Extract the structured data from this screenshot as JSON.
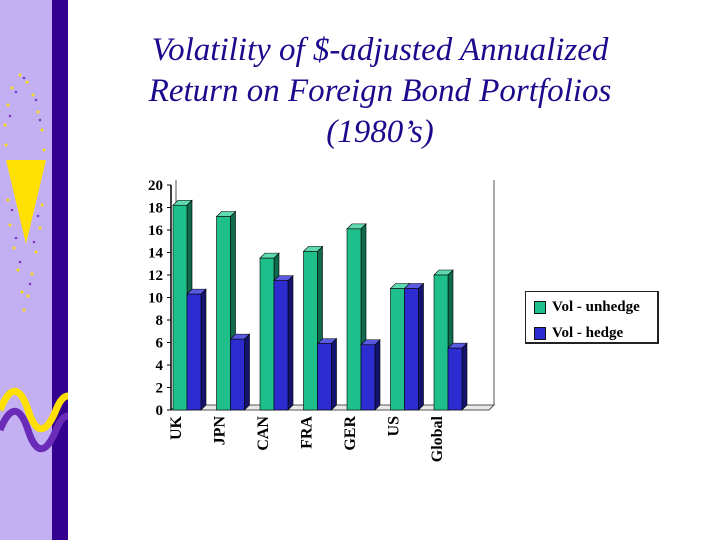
{
  "slide": {
    "title_lines": [
      "Volatility of $-adjusted Annualized",
      "Return on Foreign Bond Portfolios",
      "(1980’s)"
    ]
  },
  "colors": {
    "sidebar_light": "#c3b0f2",
    "sidebar_dark": "#33008f",
    "title": "#1b0a8c",
    "unhedged": "#1fbf8c",
    "hedged": "#2c2cd0"
  },
  "chart_data": {
    "type": "bar",
    "categories": [
      "UK",
      "JPN",
      "CAN",
      "FRA",
      "GER",
      "US",
      "Global"
    ],
    "series": [
      {
        "name": "Vol - unhedge",
        "values": [
          18.2,
          17.2,
          13.5,
          14.1,
          16.1,
          10.8,
          12.0
        ]
      },
      {
        "name": "Vol - hedge",
        "values": [
          10.3,
          6.3,
          11.5,
          5.9,
          5.8,
          10.8,
          5.5
        ]
      }
    ],
    "ylim": [
      0,
      20
    ],
    "yticks": [
      "0",
      "2",
      "4",
      "6",
      "8",
      "10",
      "12",
      "14",
      "16",
      "18",
      "20"
    ],
    "grid": false,
    "style": "3d",
    "legend_position": "right"
  }
}
